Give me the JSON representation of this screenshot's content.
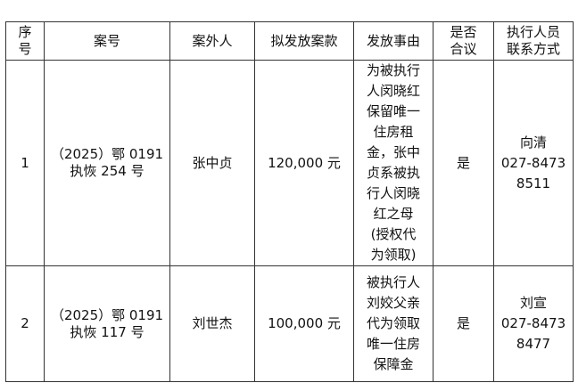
{
  "headers": {
    "seq": "序号",
    "seq_l1": "序",
    "seq_l2": "号",
    "case_no": "案号",
    "outsider": "案外人",
    "amount": "拟发放案款",
    "reason": "发放事由",
    "agreed_l1": "是否",
    "agreed_l2": "合议",
    "contact_l1": "执行人员",
    "contact_l2": "联系方式"
  },
  "rows": [
    {
      "seq": "1",
      "case_l1": "（2025）鄂 0191",
      "case_l2": "执恢 254 号",
      "outsider": "张中贞",
      "amount": "120,000 元",
      "reason_lines": [
        "为被执行",
        "人闵晓红",
        "保留唯一",
        "住房租",
        "金，张中",
        "贞系被执",
        "行人闵晓",
        "红之母",
        "(授权代",
        "为领取)"
      ],
      "agreed": "是",
      "officer": "向清",
      "phone_l1": "027-8473",
      "phone_l2": "8511"
    },
    {
      "seq": "2",
      "case_l1": "（2025）鄂 0191",
      "case_l2": "执恢 117 号",
      "outsider": "刘世杰",
      "amount": "100,000 元",
      "reason_lines": [
        "被执行人",
        "刘姣父亲",
        "代为领取",
        "唯一住房",
        "保障金"
      ],
      "agreed": "是",
      "officer": "刘宣",
      "phone_l1": "027-8473",
      "phone_l2": "8477"
    }
  ]
}
